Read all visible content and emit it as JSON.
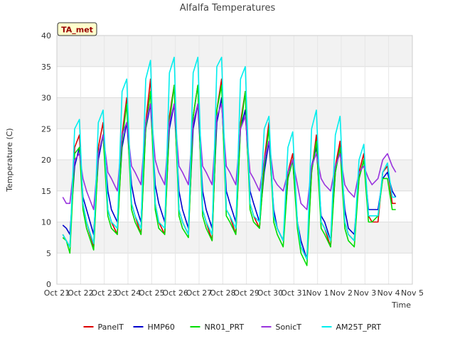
{
  "chart_data": {
    "type": "line",
    "title": "Alfalfa Temperatures",
    "xlabel": "Time",
    "ylabel": "Temperature (C)",
    "badge": "TA_met",
    "xlim": [
      0,
      15
    ],
    "ylim": [
      0,
      40
    ],
    "yticks": [
      0,
      5,
      10,
      15,
      20,
      25,
      30,
      35,
      40
    ],
    "xticks": [
      {
        "x": 0,
        "label": "Oct 21"
      },
      {
        "x": 1,
        "label": "Oct 22"
      },
      {
        "x": 2,
        "label": "Oct 23"
      },
      {
        "x": 3,
        "label": "Oct 24"
      },
      {
        "x": 4,
        "label": "Oct 25"
      },
      {
        "x": 5,
        "label": "Oct 26"
      },
      {
        "x": 6,
        "label": "Oct 27"
      },
      {
        "x": 7,
        "label": "Oct 28"
      },
      {
        "x": 8,
        "label": "Oct 29"
      },
      {
        "x": 9,
        "label": "Oct 30"
      },
      {
        "x": 10,
        "label": "Oct 31"
      },
      {
        "x": 11,
        "label": "Nov 1"
      },
      {
        "x": 12,
        "label": "Nov 2"
      },
      {
        "x": 13,
        "label": "Nov 3"
      },
      {
        "x": 14,
        "label": "Nov 4"
      },
      {
        "x": 15,
        "label": "Nov 5"
      }
    ],
    "x_unit": "days since Oct 21",
    "series": [
      {
        "name": "PanelT",
        "color": "#dd0000",
        "x": [
          0.25,
          0.4,
          0.55,
          0.75,
          0.95,
          1.1,
          1.25,
          1.55,
          1.75,
          1.95,
          2.15,
          2.3,
          2.55,
          2.75,
          2.95,
          3.15,
          3.3,
          3.55,
          3.75,
          3.95,
          4.15,
          4.3,
          4.55,
          4.75,
          4.95,
          5.15,
          5.3,
          5.55,
          5.75,
          5.95,
          6.15,
          6.3,
          6.55,
          6.75,
          6.95,
          7.15,
          7.3,
          7.55,
          7.75,
          7.95,
          8.15,
          8.3,
          8.55,
          8.75,
          8.95,
          9.15,
          9.3,
          9.55,
          9.75,
          9.95,
          10.15,
          10.3,
          10.55,
          10.75,
          10.95,
          11.15,
          11.3,
          11.55,
          11.75,
          11.95,
          12.15,
          12.3,
          12.55,
          12.75,
          12.95,
          13.15,
          13.3,
          13.55,
          13.75,
          13.95,
          14.15,
          14.3
        ],
        "y": [
          8,
          7,
          6,
          22,
          24,
          13,
          10,
          6,
          22,
          26,
          12,
          10,
          8,
          24,
          30,
          13,
          11,
          8,
          26,
          33,
          13,
          10,
          8,
          27,
          32,
          12,
          10,
          8,
          27,
          32,
          12,
          10,
          7,
          28,
          33,
          12,
          11,
          8,
          26,
          31,
          13,
          11,
          9,
          20,
          26,
          11,
          9,
          7,
          18,
          21,
          10,
          6,
          4,
          18,
          24,
          10,
          9,
          6,
          19,
          23,
          10,
          8,
          7,
          18,
          21,
          11,
          10,
          10,
          18,
          19,
          13,
          13
        ]
      },
      {
        "name": "HMP60",
        "color": "#0000cc",
        "x": [
          0.25,
          0.4,
          0.55,
          0.75,
          0.95,
          1.1,
          1.25,
          1.55,
          1.75,
          1.95,
          2.15,
          2.3,
          2.55,
          2.75,
          2.95,
          3.15,
          3.3,
          3.55,
          3.75,
          3.95,
          4.15,
          4.3,
          4.55,
          4.75,
          4.95,
          5.15,
          5.3,
          5.55,
          5.75,
          5.95,
          6.15,
          6.3,
          6.55,
          6.75,
          6.95,
          7.15,
          7.3,
          7.55,
          7.75,
          7.95,
          8.15,
          8.3,
          8.55,
          8.75,
          8.95,
          9.15,
          9.3,
          9.55,
          9.75,
          9.95,
          10.15,
          10.3,
          10.55,
          10.75,
          10.95,
          11.15,
          11.3,
          11.55,
          11.75,
          11.95,
          12.15,
          12.3,
          12.55,
          12.75,
          12.95,
          13.15,
          13.3,
          13.55,
          13.75,
          13.95,
          14.15,
          14.3
        ],
        "y": [
          9.5,
          9,
          8,
          19,
          22,
          14,
          12,
          8,
          20,
          24,
          15,
          12,
          10,
          22,
          26,
          16,
          13,
          10,
          25,
          29,
          16,
          13,
          10,
          25,
          29,
          15,
          12,
          9,
          25,
          29,
          15,
          12,
          9,
          26,
          30,
          15,
          13,
          10,
          25,
          28,
          15,
          13,
          10,
          18,
          23,
          12,
          9,
          7,
          17,
          20,
          10,
          7,
          4,
          19,
          22,
          11,
          10,
          7,
          18,
          22,
          12,
          9,
          8,
          17,
          20,
          12,
          12,
          12,
          17,
          18,
          15,
          14
        ]
      },
      {
        "name": "NR01_PRT",
        "color": "#00dd00",
        "x": [
          0.25,
          0.4,
          0.55,
          0.75,
          0.95,
          1.1,
          1.25,
          1.55,
          1.75,
          1.95,
          2.15,
          2.3,
          2.55,
          2.75,
          2.95,
          3.15,
          3.3,
          3.55,
          3.75,
          3.95,
          4.15,
          4.3,
          4.55,
          4.75,
          4.95,
          5.15,
          5.3,
          5.55,
          5.75,
          5.95,
          6.15,
          6.3,
          6.55,
          6.75,
          6.95,
          7.15,
          7.3,
          7.55,
          7.75,
          7.95,
          8.15,
          8.3,
          8.55,
          8.75,
          8.95,
          9.15,
          9.3,
          9.55,
          9.75,
          9.95,
          10.15,
          10.3,
          10.55,
          10.75,
          10.95,
          11.15,
          11.3,
          11.55,
          11.75,
          11.95,
          12.15,
          12.3,
          12.55,
          12.75,
          12.95,
          13.15,
          13.3,
          13.55,
          13.75,
          13.95,
          14.15,
          14.3
        ],
        "y": [
          7.5,
          7,
          5,
          21,
          22,
          12,
          9,
          5.5,
          21,
          24,
          11,
          9,
          8,
          23,
          29,
          12,
          10,
          8,
          25,
          31,
          12,
          9,
          8,
          26,
          32,
          11,
          9,
          7.5,
          27,
          32,
          11,
          9,
          7,
          28,
          32,
          11,
          10,
          8,
          25,
          31,
          12,
          10,
          9,
          19,
          25,
          10,
          8,
          6,
          17,
          20,
          9,
          5,
          3,
          18,
          23,
          9,
          8,
          6,
          18,
          22,
          9,
          7,
          6,
          17,
          20,
          10,
          10,
          11,
          17,
          17,
          12,
          12
        ]
      },
      {
        "name": "SonicT",
        "color": "#9933dd",
        "x": [
          0.25,
          0.4,
          0.55,
          0.75,
          0.95,
          1.1,
          1.25,
          1.55,
          1.75,
          1.95,
          2.15,
          2.3,
          2.55,
          2.75,
          2.95,
          3.15,
          3.3,
          3.55,
          3.75,
          3.95,
          4.15,
          4.3,
          4.55,
          4.75,
          4.95,
          5.15,
          5.3,
          5.55,
          5.75,
          5.95,
          6.15,
          6.3,
          6.55,
          6.75,
          6.95,
          7.15,
          7.3,
          7.55,
          7.75,
          7.95,
          8.15,
          8.3,
          8.55,
          8.75,
          8.95,
          9.15,
          9.3,
          9.55,
          9.75,
          9.95,
          10.15,
          10.3,
          10.55,
          10.75,
          10.95,
          11.15,
          11.3,
          11.55,
          11.75,
          11.95,
          12.15,
          12.3,
          12.55,
          12.75,
          12.95,
          13.15,
          13.3,
          13.55,
          13.75,
          13.95,
          14.15,
          14.3
        ],
        "y": [
          14,
          13,
          13,
          20,
          21,
          17,
          15,
          12,
          21,
          24,
          18,
          17,
          15,
          24,
          26,
          19,
          18,
          16,
          26,
          29,
          20,
          18,
          16,
          26,
          29,
          19,
          18,
          16,
          26,
          29,
          19,
          18,
          16,
          27,
          29,
          19,
          18,
          16,
          25,
          27,
          18,
          17,
          15,
          20,
          23,
          17,
          16,
          15,
          18,
          20,
          16,
          13,
          12,
          19,
          21,
          17,
          16,
          15,
          19,
          21,
          16,
          15,
          14,
          18,
          19,
          17,
          16,
          17,
          20,
          21,
          19,
          18
        ]
      },
      {
        "name": "AM25T_PRT",
        "color": "#00eeee",
        "x": [
          0.25,
          0.4,
          0.55,
          0.75,
          0.95,
          1.1,
          1.25,
          1.55,
          1.75,
          1.95,
          2.15,
          2.3,
          2.55,
          2.75,
          2.95,
          3.15,
          3.3,
          3.55,
          3.75,
          3.95,
          4.15,
          4.3,
          4.55,
          4.75,
          4.95,
          5.15,
          5.3,
          5.55,
          5.75,
          5.95,
          6.15,
          6.3,
          6.55,
          6.75,
          6.95,
          7.15,
          7.3,
          7.55,
          7.75,
          7.95,
          8.15,
          8.3,
          8.55,
          8.75,
          8.95,
          9.15,
          9.3,
          9.55,
          9.75,
          9.95,
          10.15,
          10.3,
          10.55,
          10.75,
          10.95,
          11.15,
          11.3,
          11.55,
          11.75,
          11.95,
          12.15,
          12.3,
          12.55,
          12.75,
          12.95,
          13.15,
          13.3,
          13.55,
          13.75,
          13.95,
          14.15,
          14.3
        ],
        "y": [
          8,
          7,
          6,
          25,
          26.5,
          13,
          10,
          6.5,
          26,
          28,
          12,
          10,
          9,
          31,
          33,
          13,
          11,
          9,
          33,
          36,
          13,
          10,
          9,
          34,
          36.5,
          12,
          10,
          8,
          34,
          36.5,
          12,
          10,
          8,
          35,
          36.5,
          12,
          11,
          9,
          33,
          35,
          13,
          11,
          10,
          25,
          27,
          11,
          9,
          7,
          22,
          24.5,
          10,
          6,
          4,
          25,
          28,
          10,
          9,
          7,
          24,
          27,
          10,
          8,
          7,
          20,
          22.5,
          11,
          11,
          11,
          18,
          19.5,
          14,
          14
        ]
      }
    ],
    "legend": "bottom",
    "grid": true
  }
}
